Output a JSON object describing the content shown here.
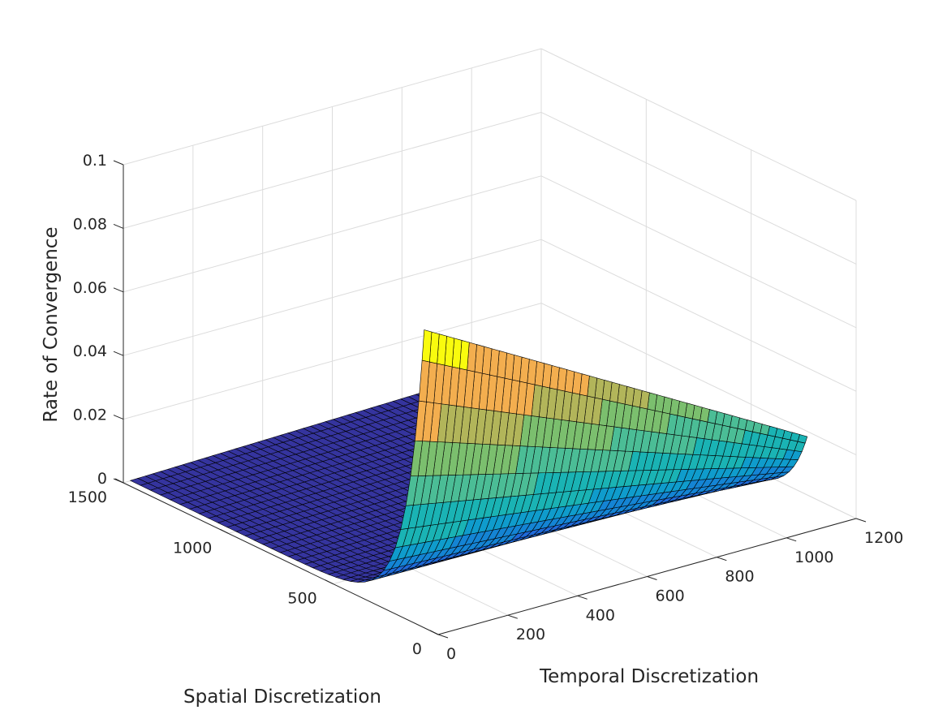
{
  "chart_data": {
    "type": "surface",
    "xlabel": "Spatial Discretization",
    "ylabel": "Temporal Discretization",
    "zlabel": "Rate of Convergence",
    "x_ticks": [
      "0",
      "500",
      "1000",
      "1500"
    ],
    "y_ticks": [
      "0",
      "200",
      "400",
      "600",
      "800",
      "1000",
      "1200"
    ],
    "z_ticks": [
      "0",
      "0.02",
      "0.04",
      "0.06",
      "0.08",
      "0.1"
    ],
    "xlim": [
      0,
      1500
    ],
    "ylim": [
      0,
      1200
    ],
    "zlim": [
      0,
      0.1
    ],
    "grid": true,
    "colormap": "parula",
    "surface": {
      "x_range": [
        100,
        1500
      ],
      "y_range": [
        20,
        1120
      ],
      "z_at_min_temporal": 0.092,
      "z_at_max_temporal": 0.025,
      "z_at_max_spatial_min_temporal": 0.0001,
      "z_at_max_spatial_max_temporal": 0.003
    },
    "color_bands": [
      {
        "z_min": 0.08,
        "color": "#f9fb0e"
      },
      {
        "z_min": 0.06,
        "color": "#f3ae4f"
      },
      {
        "z_min": 0.05,
        "color": "#b2b55a"
      },
      {
        "z_min": 0.04,
        "color": "#7bbf6e"
      },
      {
        "z_min": 0.03,
        "color": "#4bbd96"
      },
      {
        "z_min": 0.02,
        "color": "#1ab3b4"
      },
      {
        "z_min": 0.015,
        "color": "#0f9ccc"
      },
      {
        "z_min": 0.01,
        "color": "#1484d4"
      },
      {
        "z_min": 0.006,
        "color": "#1f6ad9"
      },
      {
        "z_min": 0.003,
        "color": "#2f4fd0"
      },
      {
        "z_min": 0.0,
        "color": "#35349e"
      }
    ]
  }
}
